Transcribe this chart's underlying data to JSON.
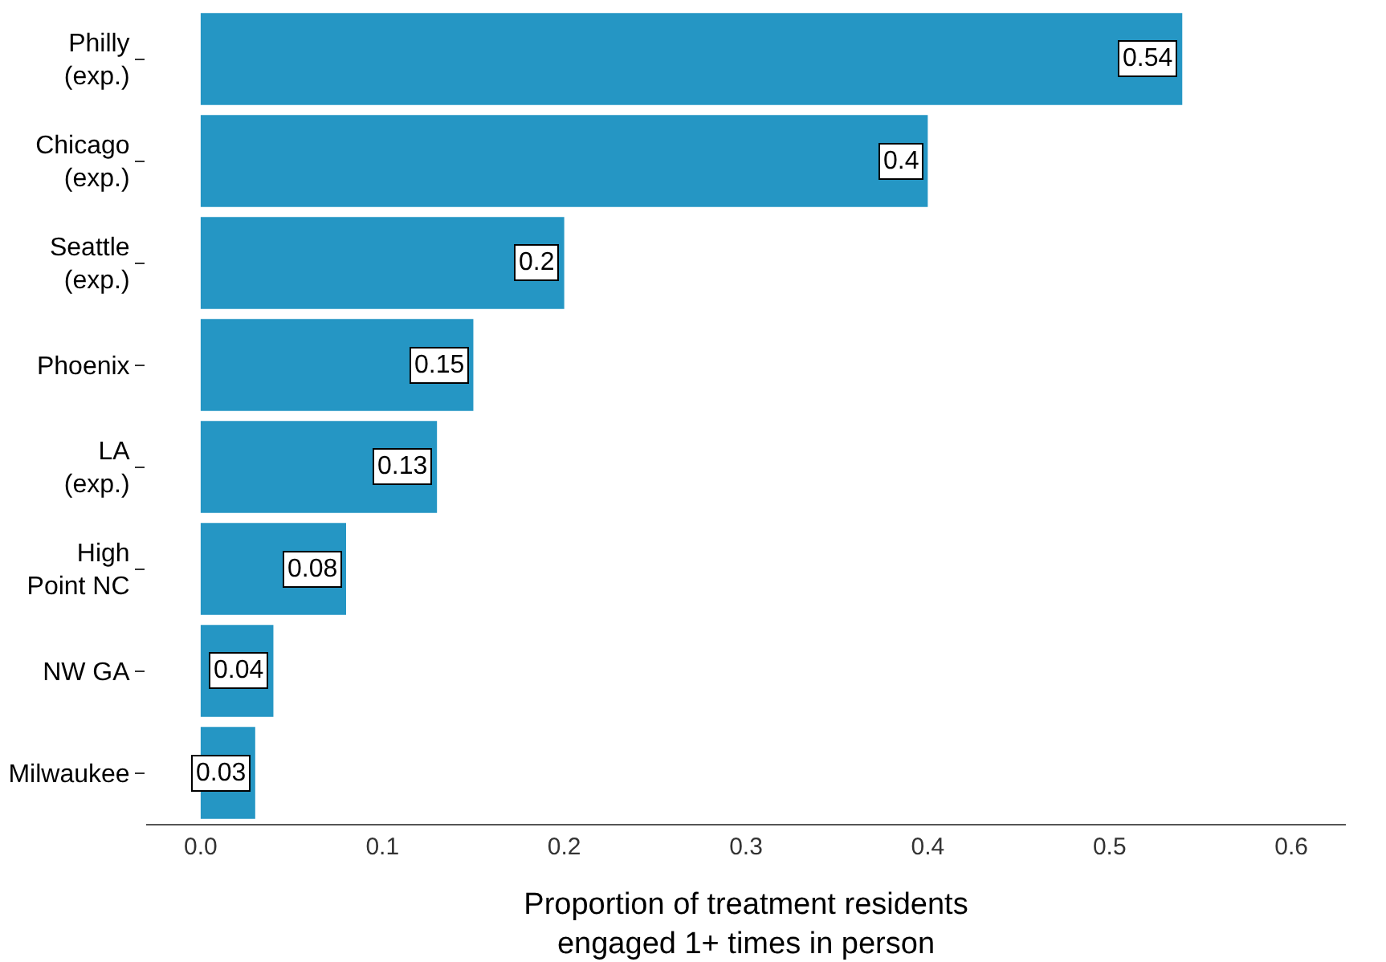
{
  "chart_data": {
    "type": "bar",
    "orientation": "horizontal",
    "categories": [
      "Philly\n(exp.)",
      "Chicago\n(exp.)",
      "Seattle\n(exp.)",
      "Phoenix",
      "LA\n(exp.)",
      "High\nPoint NC",
      "NW GA",
      "Milwaukee"
    ],
    "values": [
      0.54,
      0.4,
      0.2,
      0.15,
      0.13,
      0.08,
      0.04,
      0.03
    ],
    "color": "#2596c4",
    "xlabel": "Proportion of treatment residents\nengaged 1+ times in person",
    "xlim": [
      -0.03,
      0.63
    ],
    "xticks": [
      {
        "value": 0,
        "label": "0.0"
      },
      0.1,
      0.2,
      0.3,
      0.4,
      0.5,
      0.6
    ],
    "data_labels": true
  }
}
